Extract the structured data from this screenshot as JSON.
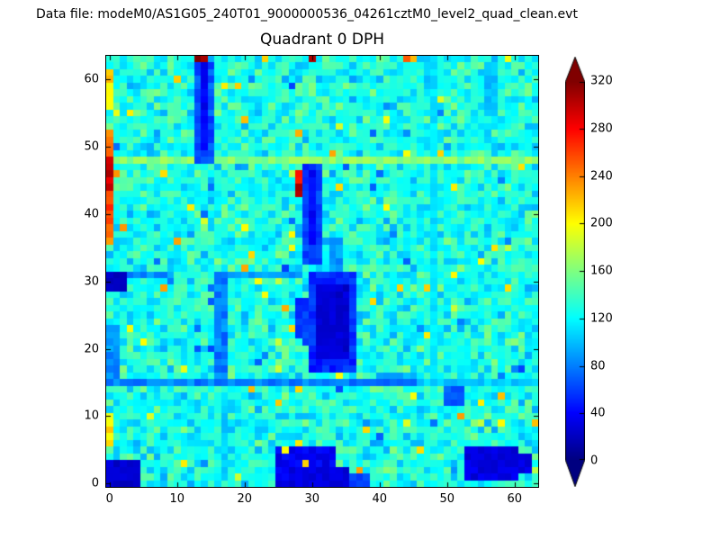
{
  "header": {
    "datafile_label": "Data file: modeM0/AS1G05_240T01_9000000536_04261cztM0_level2_quad_clean.evt"
  },
  "chart_data": {
    "type": "heatmap",
    "title": "Quadrant 0 DPH",
    "xlabel": "",
    "ylabel": "",
    "grid_size": [
      64,
      64
    ],
    "xlim": [
      -0.5,
      63.5
    ],
    "ylim": [
      -0.5,
      63.5
    ],
    "x_ticks": [
      0,
      10,
      20,
      30,
      40,
      50,
      60
    ],
    "y_ticks": [
      0,
      10,
      20,
      30,
      40,
      50,
      60
    ],
    "colormap": "jet",
    "vmin": 0,
    "vmax": 320,
    "colorbar": {
      "ticks": [
        0,
        40,
        80,
        120,
        160,
        200,
        240,
        280,
        320
      ],
      "extend": "both",
      "under_color": "#000080",
      "over_color": "#800000"
    },
    "background": {
      "mean": 127,
      "spread": 38,
      "seed": 42,
      "hot_speckle_prob": 0.015,
      "cold_speckle_prob": 0.012
    },
    "regions": [
      {
        "x": [
          0,
          45
        ],
        "y": [
          15,
          15
        ],
        "v": 80,
        "j": 24
      },
      {
        "x": [
          46,
          63
        ],
        "y": [
          15,
          15
        ],
        "v": 104,
        "j": 20
      },
      {
        "x": [
          40,
          45
        ],
        "y": [
          16,
          16
        ],
        "v": 92,
        "j": 20
      },
      {
        "x": [
          0,
          9
        ],
        "y": [
          31,
          31
        ],
        "v": 85,
        "j": 20
      },
      {
        "x": [
          18,
          28
        ],
        "y": [
          31,
          31
        ],
        "v": 90,
        "j": 20
      },
      {
        "x": [
          16,
          17
        ],
        "y": [
          16,
          31
        ],
        "v": 80,
        "j": 26
      },
      {
        "x": [
          17,
          17
        ],
        "y": [
          1,
          13
        ],
        "v": 106,
        "j": 18
      },
      {
        "x": [
          48,
          48
        ],
        "y": [
          16,
          63
        ],
        "v": 112,
        "j": 16
      },
      {
        "x": [
          1,
          63
        ],
        "y": [
          48,
          48
        ],
        "v": 162,
        "j": 26
      },
      {
        "x": [
          13,
          15
        ],
        "y": [
          48,
          62
        ],
        "v": 65,
        "j": 26
      },
      {
        "x": [
          14,
          14
        ],
        "y": [
          50,
          62
        ],
        "v": 38,
        "j": 16
      },
      {
        "x": [
          29,
          31
        ],
        "y": [
          33,
          47
        ],
        "v": 58,
        "j": 24
      },
      {
        "x": [
          30,
          30
        ],
        "y": [
          36,
          46
        ],
        "v": 40,
        "j": 16
      },
      {
        "x": [
          28,
          28
        ],
        "y": [
          43,
          46
        ],
        "v": 290,
        "j": 40
      },
      {
        "x": [
          33,
          34
        ],
        "y": [
          32,
          36
        ],
        "v": 88,
        "j": 20
      },
      {
        "x": [
          30,
          36
        ],
        "y": [
          17,
          31
        ],
        "v": 52,
        "j": 24
      },
      {
        "x": [
          31,
          35
        ],
        "y": [
          19,
          29
        ],
        "v": 26,
        "j": 14
      },
      {
        "x": [
          28,
          29
        ],
        "y": [
          22,
          27
        ],
        "v": 58,
        "j": 20
      },
      {
        "x": [
          25,
          33
        ],
        "y": [
          0,
          5
        ],
        "v": 36,
        "j": 20
      },
      {
        "x": [
          27,
          35
        ],
        "y": [
          0,
          2
        ],
        "v": 30,
        "j": 14
      },
      {
        "x": [
          36,
          38
        ],
        "y": [
          0,
          1
        ],
        "v": 60,
        "j": 20
      },
      {
        "x": [
          53,
          60
        ],
        "y": [
          1,
          5
        ],
        "v": 32,
        "j": 18
      },
      {
        "x": [
          55,
          62
        ],
        "y": [
          2,
          4
        ],
        "v": 30,
        "j": 16
      },
      {
        "x": [
          0,
          4
        ],
        "y": [
          0,
          3
        ],
        "v": 25,
        "j": 16
      },
      {
        "x": [
          0,
          1
        ],
        "y": [
          16,
          23
        ],
        "v": 85,
        "j": 24
      },
      {
        "x": [
          0,
          2
        ],
        "y": [
          29,
          31
        ],
        "v": 22,
        "j": 14
      },
      {
        "x": [
          0,
          0
        ],
        "y": [
          6,
          10
        ],
        "v": 205,
        "j": 30
      },
      {
        "x": [
          0,
          0
        ],
        "y": [
          36,
          43
        ],
        "v": 250,
        "j": 40
      },
      {
        "x": [
          0,
          0
        ],
        "y": [
          44,
          48
        ],
        "v": 300,
        "j": 30
      },
      {
        "x": [
          0,
          0
        ],
        "y": [
          49,
          52
        ],
        "v": 235,
        "j": 30
      },
      {
        "x": [
          0,
          0
        ],
        "y": [
          56,
          61
        ],
        "v": 210,
        "j": 30
      },
      {
        "x": [
          50,
          52
        ],
        "y": [
          12,
          14
        ],
        "v": 70,
        "j": 18
      },
      {
        "x": [
          56,
          57
        ],
        "y": [
          55,
          62
        ],
        "v": 100,
        "j": 18
      }
    ],
    "points": [
      [
        13,
        63,
        335
      ],
      [
        14,
        63,
        308
      ],
      [
        30,
        63,
        305
      ],
      [
        44,
        63,
        252
      ],
      [
        45,
        63,
        222
      ],
      [
        23,
        63,
        214
      ],
      [
        29,
        3,
        214
      ],
      [
        26,
        5,
        200
      ],
      [
        8,
        46,
        210
      ],
      [
        21,
        34,
        212
      ],
      [
        47,
        22,
        205
      ],
      [
        59,
        29,
        210
      ],
      [
        5,
        21,
        200
      ],
      [
        38,
        8,
        212
      ],
      [
        51,
        44,
        205
      ],
      [
        61,
        47,
        208
      ],
      [
        11,
        3,
        205
      ],
      [
        46,
        5,
        210
      ],
      [
        33,
        49,
        228
      ],
      [
        17,
        59,
        205
      ],
      [
        55,
        33,
        200
      ],
      [
        3,
        55,
        205
      ],
      [
        41,
        41,
        200
      ],
      [
        12,
        41,
        205
      ],
      [
        44,
        33,
        70
      ],
      [
        52,
        24,
        80
      ],
      [
        7,
        33,
        75
      ],
      [
        22,
        18,
        70
      ],
      [
        48,
        9,
        75
      ],
      [
        58,
        16,
        80
      ],
      [
        41,
        56,
        85
      ],
      [
        49,
        55,
        80
      ],
      [
        44,
        52,
        85
      ],
      [
        19,
        47,
        88
      ],
      [
        20,
        47,
        92
      ],
      [
        57,
        63,
        95
      ],
      [
        36,
        60,
        90
      ]
    ]
  }
}
